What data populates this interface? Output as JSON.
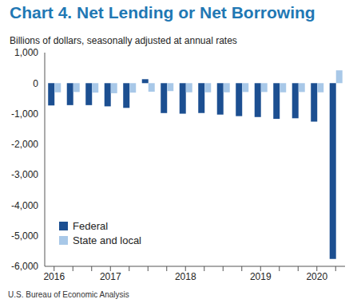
{
  "chart_data": {
    "type": "bar",
    "title": "Chart 4. Net Lending or Net Borrowing",
    "subtitle": "Billions of dollars, seasonally adjusted at annual rates",
    "source": "U.S. Bureau of Economic Analysis",
    "categories": [
      "2016",
      null,
      null,
      "2017",
      null,
      null,
      null,
      "2018",
      null,
      null,
      null,
      "2019",
      null,
      null,
      "2020",
      null
    ],
    "series": [
      {
        "name": "Federal",
        "color": "#1c4f91",
        "values": [
          -730,
          -720,
          -720,
          -760,
          -810,
          130,
          -980,
          -1000,
          -980,
          -1030,
          -1080,
          -1110,
          -1170,
          -1150,
          -1260,
          -5760
        ]
      },
      {
        "name": "State and local",
        "color": "#a8c8e8",
        "values": [
          -300,
          -290,
          -310,
          -330,
          -310,
          -280,
          -260,
          -300,
          -300,
          -300,
          -290,
          -290,
          -300,
          -290,
          -300,
          420
        ]
      }
    ],
    "ylim": [
      -6000,
      1000
    ],
    "yticks": [
      {
        "value": 1000,
        "label": "1,000"
      },
      0,
      {
        "value": -1000,
        "label": "-1,000"
      },
      {
        "value": -2000,
        "label": "-2,000"
      },
      {
        "value": -3000,
        "label": "-3,000"
      },
      {
        "value": -4000,
        "label": "-4,000"
      },
      {
        "value": -5000,
        "label": "-5,000"
      },
      {
        "value": -6000,
        "label": "-6,000"
      }
    ],
    "grid": false,
    "legend": "lower left"
  }
}
